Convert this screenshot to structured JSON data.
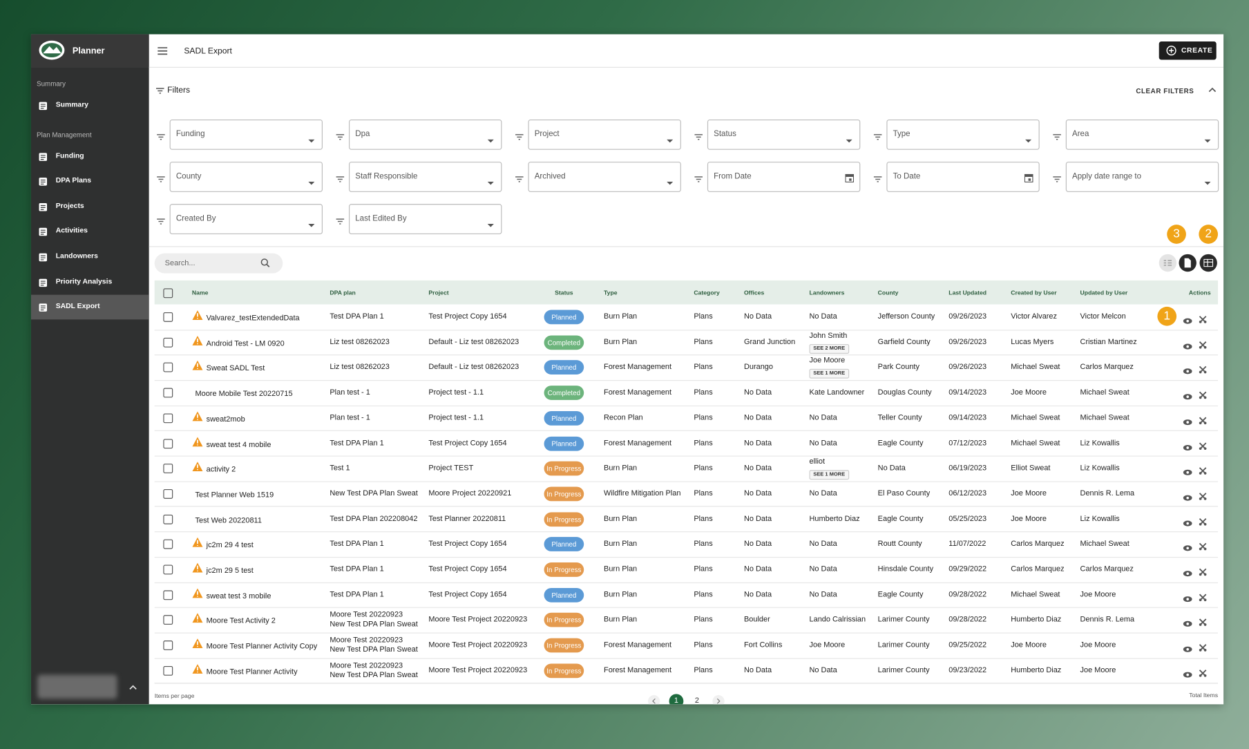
{
  "sidebar": {
    "brand": "Planner",
    "sections": [
      {
        "heading": "Summary",
        "items": [
          "Summary"
        ]
      },
      {
        "heading": "Plan Management",
        "items": [
          "Funding",
          "DPA Plans",
          "Projects",
          "Activities",
          "Landowners",
          "Priority Analysis",
          "SADL Export"
        ]
      }
    ],
    "active_item": "SADL Export"
  },
  "header": {
    "title": "SADL Export",
    "create_button": "CREATE"
  },
  "filters": {
    "title": "Filters",
    "clear": "CLEAR FILTERS",
    "fields": [
      {
        "label": "Funding",
        "kind": "select"
      },
      {
        "label": "Dpa",
        "kind": "select"
      },
      {
        "label": "Project",
        "kind": "select"
      },
      {
        "label": "Status",
        "kind": "select"
      },
      {
        "label": "Type",
        "kind": "select"
      },
      {
        "label": "Area",
        "kind": "select"
      },
      {
        "label": "County",
        "kind": "select"
      },
      {
        "label": "Staff Responsible",
        "kind": "select"
      },
      {
        "label": "Archived",
        "kind": "select"
      },
      {
        "label": "From Date",
        "kind": "date"
      },
      {
        "label": "To Date",
        "kind": "date"
      },
      {
        "label": "Apply date range to",
        "kind": "select"
      },
      {
        "label": "Created By",
        "kind": "select"
      },
      {
        "label": "Last Edited By",
        "kind": "select"
      }
    ]
  },
  "search": {
    "placeholder": "Search..."
  },
  "badges": [
    "1",
    "2",
    "3"
  ],
  "table": {
    "columns": [
      "Name",
      "DPA plan",
      "Project",
      "Status",
      "Type",
      "Category",
      "Offices",
      "Landowners",
      "County",
      "Last Updated",
      "Created by User",
      "Updated by User",
      "Actions"
    ],
    "status_colors": {
      "Planned": "#5b9ad6",
      "Completed": "#6cb47c",
      "In Progress": "#e49a4e"
    },
    "rows": [
      {
        "warning": true,
        "name": "Valvarez_testExtendedData",
        "dpa_plan": [
          "Test DPA Plan 1"
        ],
        "project": "Test Project Copy 1654",
        "status": "Planned",
        "type": "Burn Plan",
        "category": "Plans",
        "offices": "No Data",
        "landowners": "No Data",
        "county": "Jefferson County",
        "last_updated": "09/26/2023",
        "created_by": "Victor Alvarez",
        "updated_by": "Victor Melcon"
      },
      {
        "warning": true,
        "name": "Android Test - LM 0920",
        "dpa_plan": [
          "Liz test 08262023"
        ],
        "project": "Default - Liz test 08262023",
        "status": "Completed",
        "type": "Burn Plan",
        "category": "Plans",
        "offices": "Grand Junction",
        "landowners": "John Smith",
        "see_more": "SEE 2 MORE",
        "county": "Garfield County",
        "last_updated": "09/26/2023",
        "created_by": "Lucas Myers",
        "updated_by": "Cristian Martinez"
      },
      {
        "warning": true,
        "name": "Sweat SADL Test",
        "dpa_plan": [
          "Liz test 08262023"
        ],
        "project": "Default - Liz test 08262023",
        "status": "Planned",
        "type": "Forest Management",
        "category": "Plans",
        "offices": "Durango",
        "landowners": "Joe Moore",
        "see_more": "SEE 1 MORE",
        "county": "Park County",
        "last_updated": "09/26/2023",
        "created_by": "Michael Sweat",
        "updated_by": "Carlos Marquez"
      },
      {
        "warning": false,
        "name": "Moore Mobile Test 20220715",
        "dpa_plan": [
          "Plan test - 1"
        ],
        "project": "Project test - 1.1",
        "status": "Completed",
        "type": "Forest Management",
        "category": "Plans",
        "offices": "No Data",
        "landowners": "Kate Landowner",
        "county": "Douglas County",
        "last_updated": "09/14/2023",
        "created_by": "Joe Moore",
        "updated_by": "Michael Sweat"
      },
      {
        "warning": true,
        "name": "sweat2mob",
        "dpa_plan": [
          "Plan test - 1"
        ],
        "project": "Project test - 1.1",
        "status": "Planned",
        "type": "Recon Plan",
        "category": "Plans",
        "offices": "No Data",
        "landowners": "No Data",
        "county": "Teller County",
        "last_updated": "09/14/2023",
        "created_by": "Michael Sweat",
        "updated_by": "Michael Sweat"
      },
      {
        "warning": true,
        "name": "sweat test 4 mobile",
        "dpa_plan": [
          "Test DPA Plan 1"
        ],
        "project": "Test Project Copy 1654",
        "status": "Planned",
        "type": "Forest Management",
        "category": "Plans",
        "offices": "No Data",
        "landowners": "No Data",
        "county": "Eagle County",
        "last_updated": "07/12/2023",
        "created_by": "Michael Sweat",
        "updated_by": "Liz Kowallis"
      },
      {
        "warning": true,
        "name": "activity 2",
        "dpa_plan": [
          "Test 1"
        ],
        "project": "Project TEST",
        "status": "In Progress",
        "type": "Burn Plan",
        "category": "Plans",
        "offices": "No Data",
        "landowners": "elliot",
        "see_more": "SEE 1 MORE",
        "county": "No Data",
        "last_updated": "06/19/2023",
        "created_by": "Elliot Sweat",
        "updated_by": "Liz Kowallis"
      },
      {
        "warning": false,
        "name": "Test Planner Web 1519",
        "dpa_plan": [
          "New Test DPA Plan Sweat"
        ],
        "project": "Moore Project 20220921",
        "status": "In Progress",
        "type": "Wildfire Mitigation Plan",
        "category": "Plans",
        "offices": "No Data",
        "landowners": "No Data",
        "county": "El Paso County",
        "last_updated": "06/12/2023",
        "created_by": "Joe Moore",
        "updated_by": "Dennis R. Lema"
      },
      {
        "warning": false,
        "name": "Test Web 20220811",
        "dpa_plan": [
          "Test DPA Plan 202208042"
        ],
        "project": "Test Planner 20220811",
        "status": "In Progress",
        "type": "Burn Plan",
        "category": "Plans",
        "offices": "No Data",
        "landowners": "Humberto Diaz",
        "county": "Eagle County",
        "last_updated": "05/25/2023",
        "created_by": "Joe Moore",
        "updated_by": "Liz Kowallis"
      },
      {
        "warning": true,
        "name": "jc2m 29 4 test",
        "dpa_plan": [
          "Test DPA Plan 1"
        ],
        "project": "Test Project Copy 1654",
        "status": "Planned",
        "type": "Burn Plan",
        "category": "Plans",
        "offices": "No Data",
        "landowners": "No Data",
        "county": "Routt County",
        "last_updated": "11/07/2022",
        "created_by": "Carlos Marquez",
        "updated_by": "Michael Sweat"
      },
      {
        "warning": true,
        "name": "jc2m 29 5 test",
        "dpa_plan": [
          "Test DPA Plan 1"
        ],
        "project": "Test Project Copy 1654",
        "status": "In Progress",
        "type": "Burn Plan",
        "category": "Plans",
        "offices": "No Data",
        "landowners": "No Data",
        "county": "Hinsdale County",
        "last_updated": "09/29/2022",
        "created_by": "Carlos Marquez",
        "updated_by": "Carlos Marquez"
      },
      {
        "warning": true,
        "name": "sweat test 3 mobile",
        "dpa_plan": [
          "Test DPA Plan 1"
        ],
        "project": "Test Project Copy 1654",
        "status": "Planned",
        "type": "Burn Plan",
        "category": "Plans",
        "offices": "No Data",
        "landowners": "No Data",
        "county": "Eagle County",
        "last_updated": "09/28/2022",
        "created_by": "Michael Sweat",
        "updated_by": "Joe Moore"
      },
      {
        "warning": true,
        "name": "Moore Test Activity 2",
        "dpa_plan": [
          "Moore Test 20220923",
          "New Test DPA Plan Sweat"
        ],
        "project": "Moore Test Project 20220923",
        "status": "In Progress",
        "type": "Burn Plan",
        "category": "Plans",
        "offices": "Boulder",
        "landowners": "Lando Calrissian",
        "county": "Larimer County",
        "last_updated": "09/28/2022",
        "created_by": "Humberto Diaz",
        "updated_by": "Dennis R. Lema"
      },
      {
        "warning": true,
        "name": "Moore Test Planner Activity Copy",
        "dpa_plan": [
          "Moore Test 20220923",
          "New Test DPA Plan Sweat"
        ],
        "project": "Moore Test Project 20220923",
        "status": "In Progress",
        "type": "Forest Management",
        "category": "Plans",
        "offices": "Fort Collins",
        "landowners": "Joe Moore",
        "county": "Larimer County",
        "last_updated": "09/25/2022",
        "created_by": "Joe Moore",
        "updated_by": "Joe Moore"
      },
      {
        "warning": true,
        "name": "Moore Test Planner Activity",
        "dpa_plan": [
          "Moore Test 20220923",
          "New Test DPA Plan Sweat"
        ],
        "project": "Moore Test Project 20220923",
        "status": "In Progress",
        "type": "Forest Management",
        "category": "Plans",
        "offices": "No Data",
        "landowners": "No Data",
        "county": "Larimer County",
        "last_updated": "09/23/2022",
        "created_by": "Humberto Diaz",
        "updated_by": "Joe Moore"
      }
    ]
  },
  "footer": {
    "items_per_page": "Items per page",
    "pages": [
      "1",
      "2"
    ],
    "current_page": "1",
    "total_items": "Total Items"
  }
}
